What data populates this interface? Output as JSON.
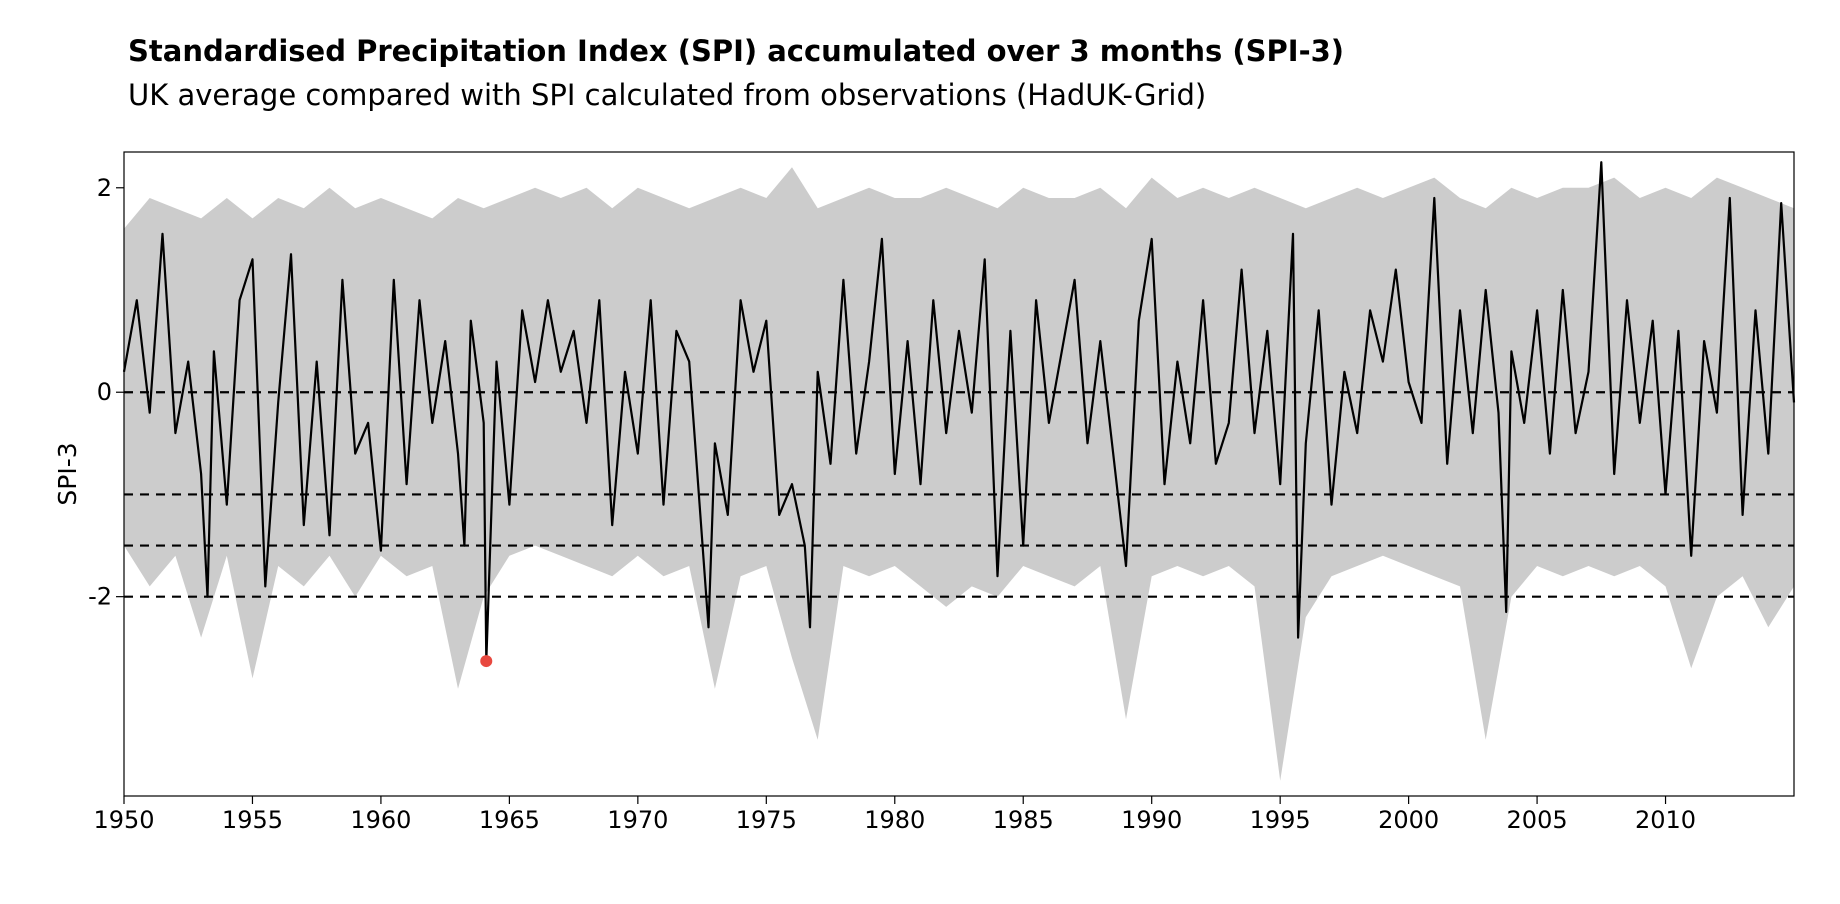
{
  "chart_data": {
    "type": "line",
    "title": "Standardised Precipitation Index (SPI) accumulated over 3 months (SPI-3)",
    "subtitle": "UK average compared with SPI calculated from observations (HadUK-Grid)",
    "xlabel": "",
    "ylabel": "SPI-3",
    "xlim": [
      1950,
      2015
    ],
    "ylim": [
      -3.95,
      2.35
    ],
    "x_ticks": [
      1950,
      1955,
      1960,
      1965,
      1970,
      1975,
      1980,
      1985,
      1990,
      1995,
      2000,
      2005,
      2010
    ],
    "y_ticks": [
      2,
      0,
      -2
    ],
    "reference_lines": [
      0,
      -1,
      -1.5,
      -2
    ],
    "grid": false,
    "legend": "none",
    "colors": {
      "series": "#000000",
      "range_band": "#cccccc",
      "highlight": "#e8483f",
      "reference": "#000000"
    },
    "series": [
      {
        "x": [
          1950.0,
          1950.5,
          1951.0,
          1951.5,
          1952.0,
          1952.5,
          1953.0,
          1953.25,
          1953.5,
          1954.0,
          1954.5,
          1955.0,
          1955.5,
          1956.0,
          1956.5,
          1957.0,
          1957.5,
          1958.0,
          1958.5,
          1959.0,
          1959.5,
          1960.0,
          1960.5,
          1961.0,
          1961.5,
          1962.0,
          1962.5,
          1963.0,
          1963.25,
          1963.5,
          1964.0,
          1964.1,
          1964.5,
          1965.0,
          1965.5,
          1966.0,
          1966.5,
          1967.0,
          1967.5,
          1968.0,
          1968.5,
          1969.0,
          1969.5,
          1970.0,
          1970.5,
          1971.0,
          1971.5,
          1972.0,
          1972.75,
          1973.0,
          1973.5,
          1974.0,
          1974.5,
          1975.0,
          1975.5,
          1976.0,
          1976.5,
          1976.7,
          1977.0,
          1977.5,
          1978.0,
          1978.5,
          1979.0,
          1979.5,
          1980.0,
          1980.5,
          1981.0,
          1981.5,
          1982.0,
          1982.5,
          1983.0,
          1983.5,
          1984.0,
          1984.5,
          1985.0,
          1985.5,
          1986.0,
          1986.5,
          1987.0,
          1987.5,
          1988.0,
          1988.5,
          1989.0,
          1989.5,
          1990.0,
          1990.5,
          1991.0,
          1991.5,
          1992.0,
          1992.5,
          1993.0,
          1993.5,
          1994.0,
          1994.5,
          1995.0,
          1995.5,
          1995.7,
          1996.0,
          1996.5,
          1997.0,
          1997.5,
          1998.0,
          1998.5,
          1999.0,
          1999.5,
          2000.0,
          2000.5,
          2001.0,
          2001.5,
          2002.0,
          2002.5,
          2003.0,
          2003.5,
          2003.8,
          2004.0,
          2004.5,
          2005.0,
          2005.5,
          2006.0,
          2006.5,
          2007.0,
          2007.5,
          2008.0,
          2008.5,
          2009.0,
          2009.5,
          2010.0,
          2010.5,
          2011.0,
          2011.5,
          2012.0,
          2012.5,
          2013.0,
          2013.5,
          2014.0,
          2014.5,
          2015.0
        ],
        "values": [
          0.2,
          0.9,
          -0.2,
          1.55,
          -0.4,
          0.3,
          -0.8,
          -2.0,
          0.4,
          -1.1,
          0.9,
          1.3,
          -1.9,
          -0.1,
          1.35,
          -1.3,
          0.3,
          -1.4,
          1.1,
          -0.6,
          -0.3,
          -1.55,
          1.1,
          -0.9,
          0.9,
          -0.3,
          0.5,
          -0.6,
          -1.5,
          0.7,
          -0.3,
          -2.63,
          0.3,
          -1.1,
          0.8,
          0.1,
          0.9,
          0.2,
          0.6,
          -0.3,
          0.9,
          -1.3,
          0.2,
          -0.6,
          0.9,
          -1.1,
          0.6,
          0.3,
          -2.3,
          -0.5,
          -1.2,
          0.9,
          0.2,
          0.7,
          -1.2,
          -0.9,
          -1.5,
          -2.3,
          0.2,
          -0.7,
          1.1,
          -0.6,
          0.3,
          1.5,
          -0.8,
          0.5,
          -0.9,
          0.9,
          -0.4,
          0.6,
          -0.2,
          1.3,
          -1.8,
          0.6,
          -1.5,
          0.9,
          -0.3,
          0.4,
          1.1,
          -0.5,
          0.5,
          -0.6,
          -1.7,
          0.7,
          1.5,
          -0.9,
          0.3,
          -0.5,
          0.9,
          -0.7,
          -0.3,
          1.2,
          -0.4,
          0.6,
          -0.9,
          1.55,
          -2.4,
          -0.5,
          0.8,
          -1.1,
          0.2,
          -0.4,
          0.8,
          0.3,
          1.2,
          0.1,
          -0.3,
          1.9,
          -0.7,
          0.8,
          -0.4,
          1.0,
          -0.2,
          -2.15,
          0.4,
          -0.3,
          0.8,
          -0.6,
          1.0,
          -0.4,
          0.2,
          2.25,
          -0.8,
          0.9,
          -0.3,
          0.7,
          -1.0,
          0.6,
          -1.6,
          0.5,
          -0.2,
          1.9,
          -1.2,
          0.8,
          -0.6,
          1.85,
          -0.1
        ]
      }
    ],
    "range_band": {
      "x": [
        1950,
        1951,
        1952,
        1953,
        1954,
        1955,
        1956,
        1957,
        1958,
        1959,
        1960,
        1961,
        1962,
        1963,
        1964,
        1965,
        1966,
        1967,
        1968,
        1969,
        1970,
        1971,
        1972,
        1973,
        1974,
        1975,
        1976,
        1977,
        1978,
        1979,
        1980,
        1981,
        1982,
        1983,
        1984,
        1985,
        1986,
        1987,
        1988,
        1989,
        1990,
        1991,
        1992,
        1993,
        1994,
        1995,
        1996,
        1997,
        1998,
        1999,
        2000,
        2001,
        2002,
        2003,
        2004,
        2005,
        2006,
        2007,
        2008,
        2009,
        2010,
        2011,
        2012,
        2013,
        2014,
        2015
      ],
      "upper": [
        1.6,
        1.9,
        1.8,
        1.7,
        1.9,
        1.7,
        1.9,
        1.8,
        2.0,
        1.8,
        1.9,
        1.8,
        1.7,
        1.9,
        1.8,
        1.9,
        2.0,
        1.9,
        2.0,
        1.8,
        2.0,
        1.9,
        1.8,
        1.9,
        2.0,
        1.9,
        2.2,
        1.8,
        1.9,
        2.0,
        1.9,
        1.9,
        2.0,
        1.9,
        1.8,
        2.0,
        1.9,
        1.9,
        2.0,
        1.8,
        2.1,
        1.9,
        2.0,
        1.9,
        2.0,
        1.9,
        1.8,
        1.9,
        2.0,
        1.9,
        2.0,
        2.1,
        1.9,
        1.8,
        2.0,
        1.9,
        2.0,
        2.0,
        2.1,
        1.9,
        2.0,
        1.9,
        2.1,
        2.0,
        1.9,
        1.8
      ],
      "lower": [
        -1.5,
        -1.9,
        -1.6,
        -2.4,
        -1.6,
        -2.8,
        -1.7,
        -1.9,
        -1.6,
        -2.0,
        -1.6,
        -1.8,
        -1.7,
        -2.9,
        -2.0,
        -1.6,
        -1.5,
        -1.6,
        -1.7,
        -1.8,
        -1.6,
        -1.8,
        -1.7,
        -2.9,
        -1.8,
        -1.7,
        -2.6,
        -3.4,
        -1.7,
        -1.8,
        -1.7,
        -1.9,
        -2.1,
        -1.9,
        -2.0,
        -1.7,
        -1.8,
        -1.9,
        -1.7,
        -3.2,
        -1.8,
        -1.7,
        -1.8,
        -1.7,
        -1.9,
        -3.8,
        -2.2,
        -1.8,
        -1.7,
        -1.6,
        -1.7,
        -1.8,
        -1.9,
        -3.4,
        -2.0,
        -1.7,
        -1.8,
        -1.7,
        -1.8,
        -1.7,
        -1.9,
        -2.7,
        -2.0,
        -1.8,
        -2.3,
        -1.9
      ]
    },
    "highlight_point": {
      "x": 1964.1,
      "y": -2.63
    }
  }
}
